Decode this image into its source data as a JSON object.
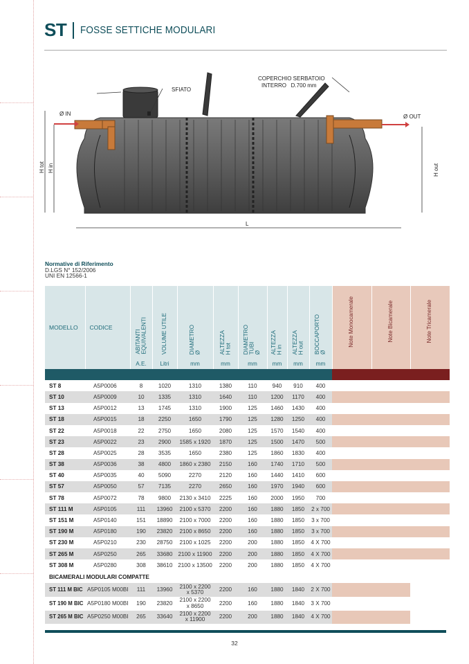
{
  "header": {
    "code": "ST",
    "title": "FOSSE SETTICHE MODULARI"
  },
  "diagram": {
    "labels": {
      "lid": "COPERCHIO SERBATOIO",
      "lid2": "INTERRO   D.700 mm",
      "vent": "SFIATO",
      "inlet": "Ø IN",
      "outlet": "Ø OUT",
      "h_tot": "H tot",
      "h_in": "H in",
      "h_out": "H out",
      "length": "L"
    },
    "colors": {
      "tank": "#5a5a5a",
      "pipe": "#c87a3a",
      "arrow": "#d04040"
    }
  },
  "norms": {
    "heading": "Normative di Riferimento",
    "lines": [
      "D.LGS N° 152/2006",
      "UNI EN 12566-1"
    ]
  },
  "table": {
    "headers": [
      "MODELLO",
      "CODICE",
      "ABITANTI EQUIVALENTI",
      "VOLUME UTILE",
      "DIAMETRO Ø",
      "ALTEZZA H tot",
      "DIAMETRO TUBI Ø",
      "ALTEZZA H in",
      "ALTEZZA H out",
      "BOCCAPORTO Ø",
      "Note  Monocamerale",
      "Note  Bicamerale",
      "Note  Tricamerale"
    ],
    "header_lines": [
      [],
      [],
      [
        "ABITANTI",
        "EQUIVALENTI"
      ],
      [
        "VOLUME UTILE"
      ],
      [
        "DIAMETRO",
        "Ø"
      ],
      [
        "ALTEZZA",
        "H tot"
      ],
      [
        "DIAMETRO",
        "TUBI",
        "Ø"
      ],
      [
        "ALTEZZA",
        "H in"
      ],
      [
        "ALTEZZA",
        "H out"
      ],
      [
        "BOCCAPORTO",
        "Ø"
      ],
      [
        "Note  Monocamerale"
      ],
      [
        "Note  Bicamerale"
      ],
      [
        "Note  Tricamerale"
      ]
    ],
    "units": [
      "",
      "",
      "A.E.",
      "Litri",
      "mm",
      "mm",
      "mm",
      "mm",
      "mm",
      "mm",
      "",
      "",
      ""
    ],
    "rows": [
      [
        "ST 8",
        "A5P0006",
        "8",
        "1020",
        "1310",
        "1380",
        "110",
        "940",
        "910",
        "400"
      ],
      [
        "ST 10",
        "A5P0009",
        "10",
        "1335",
        "1310",
        "1640",
        "110",
        "1200",
        "1170",
        "400"
      ],
      [
        "ST 13",
        "A5P0012",
        "13",
        "1745",
        "1310",
        "1900",
        "125",
        "1460",
        "1430",
        "400"
      ],
      [
        "ST 18",
        "A5P0015",
        "18",
        "2250",
        "1650",
        "1790",
        "125",
        "1280",
        "1250",
        "400"
      ],
      [
        "ST 22",
        "A5P0018",
        "22",
        "2750",
        "1650",
        "2080",
        "125",
        "1570",
        "1540",
        "400"
      ],
      [
        "ST 23",
        "A5P0022",
        "23",
        "2900",
        "1585 x 1920",
        "1870",
        "125",
        "1500",
        "1470",
        "500"
      ],
      [
        "ST 28",
        "A5P0025",
        "28",
        "3535",
        "1650",
        "2380",
        "125",
        "1860",
        "1830",
        "400"
      ],
      [
        "ST 38",
        "A5P0036",
        "38",
        "4800",
        "1860 x 2380",
        "2150",
        "160",
        "1740",
        "1710",
        "500"
      ],
      [
        "ST 40",
        "A5P0035",
        "40",
        "5090",
        "2270",
        "2120",
        "160",
        "1440",
        "1410",
        "600"
      ],
      [
        "ST 57",
        "A5P0050",
        "57",
        "7135",
        "2270",
        "2650",
        "160",
        "1970",
        "1940",
        "600"
      ],
      [
        "ST 78",
        "A5P0072",
        "78",
        "9800",
        "2130 x 3410",
        "2225",
        "160",
        "2000",
        "1950",
        "700"
      ],
      [
        "ST 111 M",
        "A5P0105",
        "111",
        "13960",
        "2100  x 5370",
        "2200",
        "160",
        "1880",
        "1850",
        "2 x 700"
      ],
      [
        "ST 151 M",
        "A5P0140",
        "151",
        "18890",
        "2100 x 7000",
        "2200",
        "160",
        "1880",
        "1850",
        "3 x 700"
      ],
      [
        "ST 190 M",
        "A5P0180",
        "190",
        "23820",
        "2100 x 8650",
        "2200",
        "160",
        "1880",
        "1850",
        "3 x 700"
      ],
      [
        "ST 230 M",
        "A5P0210",
        "230",
        "28750",
        "2100 x 1025",
        "2200",
        "200",
        "1880",
        "1850",
        "4 X 700"
      ],
      [
        "ST 265 M",
        "A5P0250",
        "265",
        "33680",
        "2100 x 11900",
        "2200",
        "200",
        "1880",
        "1850",
        "4 X 700"
      ],
      [
        "ST 308 M",
        "A5P0280",
        "308",
        "38610",
        "2100 x 13500",
        "2200",
        "200",
        "1880",
        "1850",
        "4 X 700"
      ]
    ],
    "section_title": "BICAMERALI MODULARI COMPATTE",
    "bic_rows": [
      [
        "ST 111 M BIC",
        "A5P0105 M00BI",
        "111",
        "13960",
        "2100 x 2200\nx 5370",
        "2200",
        "160",
        "1880",
        "1840",
        "2 X 700"
      ],
      [
        "ST 190 M BIC",
        "A5P0180 M00BI",
        "190",
        "23820",
        "2100 x 2200\nx 8650",
        "2200",
        "160",
        "1880",
        "1840",
        "3 X 700"
      ],
      [
        "ST 265 M BIC",
        "A5P0250 M00BI",
        "265",
        "33640",
        "2100 x 2200\nx 11900",
        "2200",
        "200",
        "1880",
        "1840",
        "4 X 700"
      ]
    ],
    "colors": {
      "header_bg": "#d8e6e8",
      "note_bg": "#e8c9bb",
      "stripe": "#dcdcdc",
      "teal": "#1f5a66",
      "dark_red": "#7a1f1f"
    }
  },
  "footer": {
    "page_number": "32"
  }
}
